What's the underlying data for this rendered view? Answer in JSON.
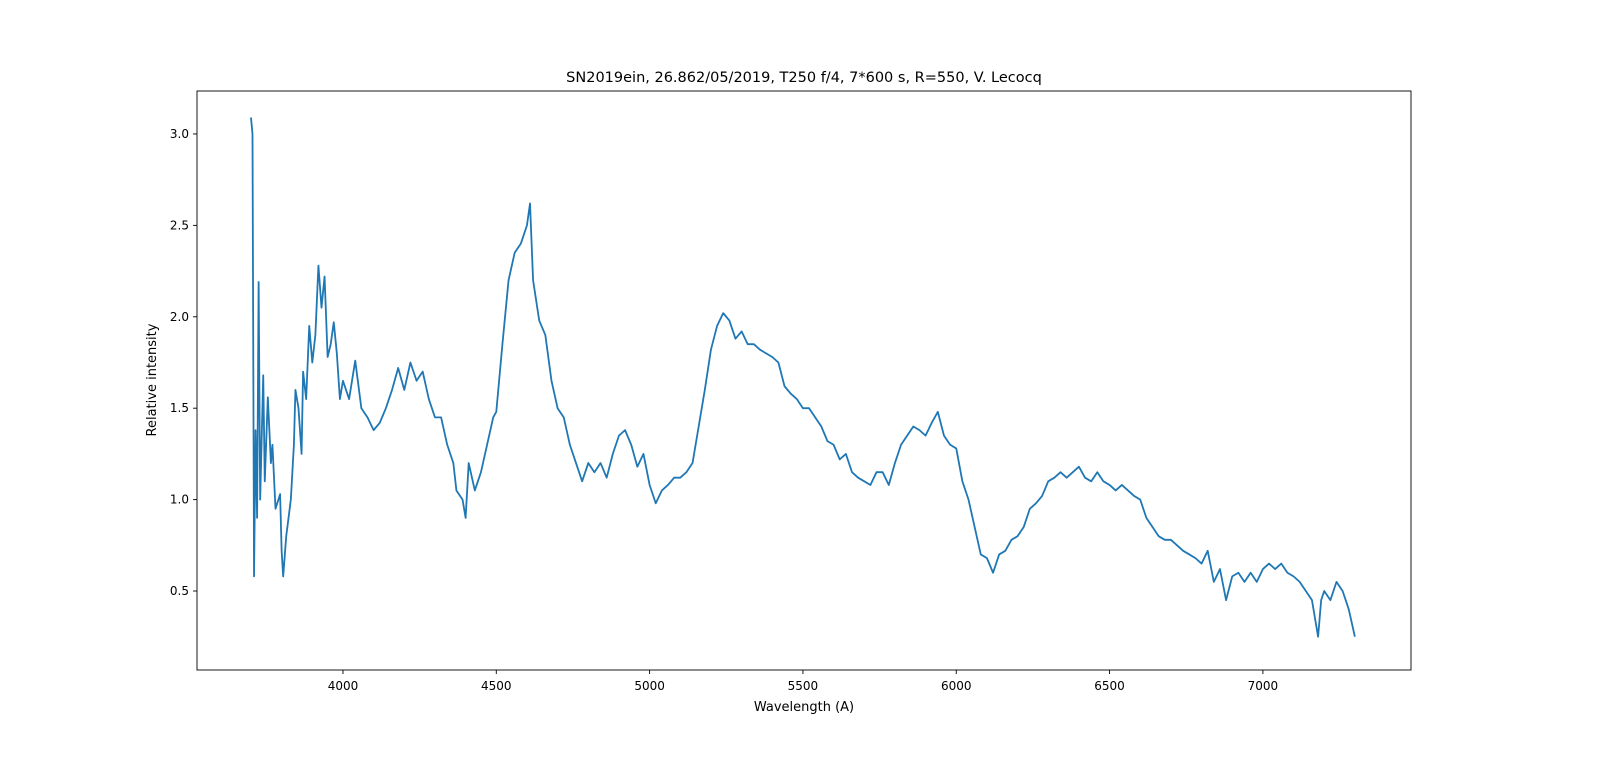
{
  "chart_data": {
    "type": "line",
    "title": "SN2019ein, 26.862/05/2019, T250 f/4, 7*600 s, R=550, V. Lecocq",
    "x_label": "Wavelength (A)",
    "y_label": "Relative intensity",
    "color": "#1f77b4",
    "xlim": [
      3524,
      7483
    ],
    "ylim": [
      0.068,
      3.235
    ],
    "xticks": [
      4000,
      4500,
      5000,
      5500,
      6000,
      6500,
      7000
    ],
    "yticks": [
      0.5,
      {
        "value": 1.0,
        "label": "1.0"
      },
      1.5,
      {
        "value": 2.0,
        "label": "2.0"
      },
      2.5,
      {
        "value": 3.0,
        "label": "3.0"
      }
    ],
    "x": [
      3700,
      3705,
      3710,
      3715,
      3720,
      3725,
      3730,
      3740,
      3745,
      3755,
      3765,
      3770,
      3780,
      3795,
      3800,
      3805,
      3815,
      3830,
      3840,
      3845,
      3855,
      3865,
      3870,
      3880,
      3890,
      3900,
      3910,
      3920,
      3930,
      3940,
      3950,
      3960,
      3970,
      3980,
      3990,
      4000,
      4020,
      4040,
      4060,
      4080,
      4100,
      4120,
      4140,
      4160,
      4180,
      4200,
      4220,
      4240,
      4260,
      4280,
      4300,
      4320,
      4340,
      4360,
      4370,
      4390,
      4400,
      4410,
      4430,
      4450,
      4470,
      4490,
      4500,
      4520,
      4540,
      4560,
      4580,
      4600,
      4610,
      4620,
      4640,
      4660,
      4680,
      4700,
      4720,
      4740,
      4760,
      4780,
      4800,
      4820,
      4840,
      4860,
      4880,
      4900,
      4920,
      4940,
      4960,
      4980,
      5000,
      5020,
      5040,
      5060,
      5080,
      5100,
      5120,
      5140,
      5160,
      5180,
      5200,
      5220,
      5240,
      5260,
      5280,
      5300,
      5320,
      5340,
      5360,
      5380,
      5400,
      5420,
      5440,
      5460,
      5480,
      5500,
      5520,
      5540,
      5560,
      5580,
      5600,
      5620,
      5640,
      5660,
      5680,
      5700,
      5720,
      5740,
      5760,
      5780,
      5800,
      5820,
      5840,
      5860,
      5880,
      5900,
      5920,
      5940,
      5960,
      5980,
      6000,
      6020,
      6040,
      6060,
      6080,
      6100,
      6120,
      6140,
      6160,
      6180,
      6200,
      6220,
      6240,
      6260,
      6280,
      6300,
      6320,
      6340,
      6360,
      6380,
      6400,
      6420,
      6440,
      6460,
      6480,
      6500,
      6520,
      6540,
      6560,
      6580,
      6600,
      6620,
      6640,
      6660,
      6680,
      6700,
      6720,
      6740,
      6760,
      6780,
      6800,
      6820,
      6840,
      6860,
      6880,
      6900,
      6920,
      6940,
      6960,
      6980,
      7000,
      7020,
      7040,
      7060,
      7080,
      7100,
      7120,
      7140,
      7160,
      7180,
      7190,
      7200,
      7220,
      7240,
      7260,
      7280,
      7300
    ],
    "values": [
      3.09,
      3.0,
      0.58,
      1.38,
      0.9,
      2.19,
      1.0,
      1.68,
      1.1,
      1.56,
      1.2,
      1.3,
      0.95,
      1.03,
      0.72,
      0.58,
      0.8,
      1.0,
      1.3,
      1.6,
      1.5,
      1.25,
      1.7,
      1.55,
      1.95,
      1.75,
      1.9,
      2.28,
      2.05,
      2.22,
      1.78,
      1.85,
      1.97,
      1.8,
      1.55,
      1.65,
      1.55,
      1.76,
      1.5,
      1.45,
      1.38,
      1.42,
      1.5,
      1.6,
      1.72,
      1.6,
      1.75,
      1.65,
      1.7,
      1.55,
      1.45,
      1.45,
      1.3,
      1.2,
      1.05,
      1.0,
      0.9,
      1.2,
      1.05,
      1.15,
      1.3,
      1.45,
      1.48,
      1.85,
      2.2,
      2.35,
      2.4,
      2.5,
      2.62,
      2.2,
      1.98,
      1.9,
      1.65,
      1.5,
      1.45,
      1.3,
      1.2,
      1.1,
      1.2,
      1.15,
      1.2,
      1.12,
      1.25,
      1.35,
      1.38,
      1.3,
      1.18,
      1.25,
      1.08,
      0.98,
      1.05,
      1.08,
      1.12,
      1.12,
      1.15,
      1.2,
      1.4,
      1.6,
      1.82,
      1.95,
      2.02,
      1.98,
      1.88,
      1.92,
      1.85,
      1.85,
      1.82,
      1.8,
      1.78,
      1.75,
      1.62,
      1.58,
      1.55,
      1.5,
      1.5,
      1.45,
      1.4,
      1.32,
      1.3,
      1.22,
      1.25,
      1.15,
      1.12,
      1.1,
      1.08,
      1.15,
      1.15,
      1.08,
      1.2,
      1.3,
      1.35,
      1.4,
      1.38,
      1.35,
      1.42,
      1.48,
      1.35,
      1.3,
      1.28,
      1.1,
      1.0,
      0.85,
      0.7,
      0.68,
      0.6,
      0.7,
      0.72,
      0.78,
      0.8,
      0.85,
      0.95,
      0.98,
      1.02,
      1.1,
      1.12,
      1.15,
      1.12,
      1.15,
      1.18,
      1.12,
      1.1,
      1.15,
      1.1,
      1.08,
      1.05,
      1.08,
      1.05,
      1.02,
      1.0,
      0.9,
      0.85,
      0.8,
      0.78,
      0.78,
      0.75,
      0.72,
      0.7,
      0.68,
      0.65,
      0.72,
      0.55,
      0.62,
      0.45,
      0.58,
      0.6,
      0.55,
      0.6,
      0.55,
      0.62,
      0.65,
      0.62,
      0.65,
      0.6,
      0.58,
      0.55,
      0.5,
      0.45,
      0.25,
      0.45,
      0.5,
      0.45,
      0.55,
      0.5,
      0.4,
      0.25
    ]
  }
}
